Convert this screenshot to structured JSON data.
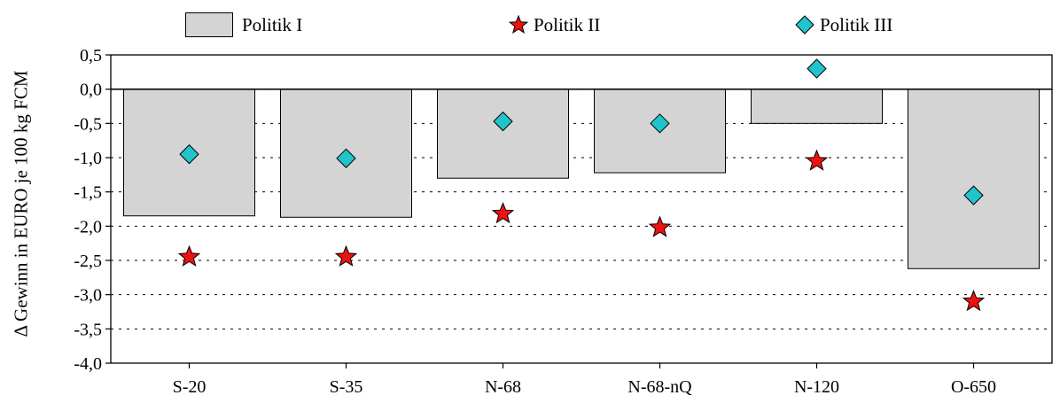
{
  "chart_data": {
    "type": "bar",
    "categories": [
      "S-20",
      "S-35",
      "N-68",
      "N-68-nQ",
      "N-120",
      "O-650"
    ],
    "series": [
      {
        "name": "Politik I",
        "kind": "bar",
        "color": "#d4d4d4",
        "values": [
          -1.85,
          -1.87,
          -1.3,
          -1.22,
          -0.5,
          -2.62
        ]
      },
      {
        "name": "Politik II",
        "kind": "marker",
        "marker": "star-icon",
        "color": "#ee1111",
        "values": [
          -2.45,
          -2.45,
          -1.82,
          -2.02,
          -1.05,
          -3.1
        ]
      },
      {
        "name": "Politik III",
        "kind": "marker",
        "marker": "diamond-icon",
        "color": "#22c4cc",
        "values": [
          -0.95,
          -1.01,
          -0.47,
          -0.5,
          0.3,
          -1.55
        ]
      }
    ],
    "title": "",
    "xlabel": "",
    "ylabel": "Δ  Gewinn in EURO je 100 kg FCM",
    "ylim": [
      -4.0,
      0.5
    ],
    "yticks": [
      0.5,
      0.0,
      -0.5,
      -1.0,
      -1.5,
      -2.0,
      -2.5,
      -3.0,
      -3.5,
      -4.0
    ],
    "ytick_labels": [
      "0,5",
      "0,0",
      "-0,5",
      "-1,0",
      "-1,5",
      "-2,0",
      "-2,5",
      "-3,0",
      "-3,5",
      "-4,0"
    ],
    "grid": "dotted horizontal",
    "legend": "top"
  }
}
